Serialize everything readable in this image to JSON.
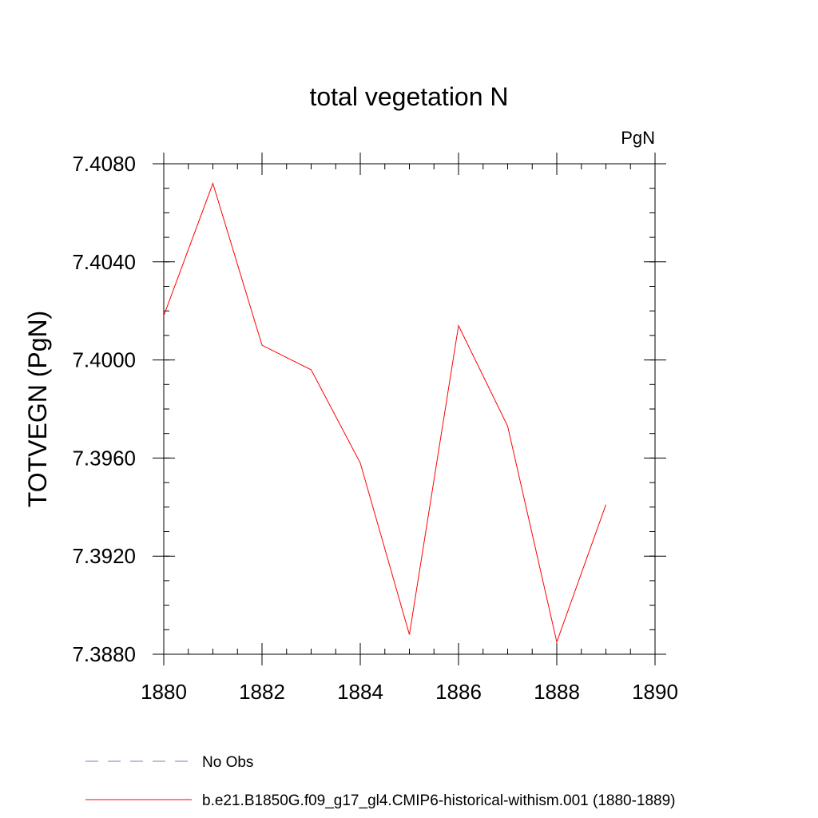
{
  "chart_data": {
    "type": "line",
    "title": "total vegetation N",
    "units_label": "PgN",
    "ylabel": "TOTVEGN  (PgN)",
    "xlabel": "",
    "xlim": [
      1880,
      1890
    ],
    "ylim": [
      7.388,
      7.408
    ],
    "x_ticks": [
      1880,
      1882,
      1884,
      1886,
      1888,
      1890
    ],
    "x_tick_labels": [
      "1880",
      "1882",
      "1884",
      "1886",
      "1888",
      "1890"
    ],
    "y_ticks": [
      7.388,
      7.392,
      7.396,
      7.4,
      7.404,
      7.408
    ],
    "y_tick_labels": [
      "7.3880",
      "7.3920",
      "7.3960",
      "7.4000",
      "7.4040",
      "7.4080"
    ],
    "x_minor_step": 0.5,
    "y_minor_step": 0.001,
    "grid": false,
    "series": [
      {
        "name": "b.e21.B1850G.f09_g17_gl4.CMIP6-historical-withism.001 (1880-1889)",
        "color": "#ff0000",
        "x": [
          1880,
          1881,
          1882,
          1883,
          1884,
          1885,
          1886,
          1887,
          1888,
          1889
        ],
        "y": [
          7.4018,
          7.4072,
          7.4006,
          7.3996,
          7.3958,
          7.3888,
          7.4014,
          7.3973,
          7.3885,
          7.3941
        ]
      }
    ],
    "legend": {
      "placement": "bottom-left",
      "entries": [
        {
          "label": "No Obs",
          "color": "#7b7bc4",
          "style": "dashed"
        },
        {
          "label": "b.e21.B1850G.f09_g17_gl4.CMIP6-historical-withism.001 (1880-1889)",
          "color": "#ff0000",
          "style": "solid"
        }
      ]
    }
  }
}
